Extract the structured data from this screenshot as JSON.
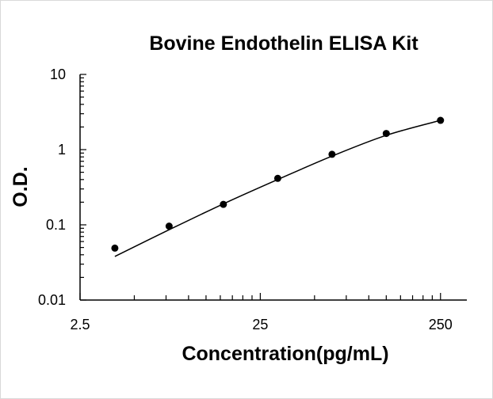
{
  "chart_data": {
    "type": "scatter",
    "title": "Bovine Endothelin  ELISA Kit",
    "xlabel": "Concentration(pg/mL)",
    "ylabel": "O.D.",
    "x_scale": "log",
    "y_scale": "log",
    "xlim": [
      2.5,
      350
    ],
    "ylim": [
      0.01,
      10
    ],
    "x_ticks": [
      "2.5",
      "25",
      "250"
    ],
    "y_ticks": [
      "10",
      "1",
      "0.1",
      "0.01"
    ],
    "grid": false,
    "legend": "none",
    "series": [
      {
        "x": [
          3.9,
          7.8,
          15.6,
          31.25,
          62.5,
          125,
          250
        ],
        "y": [
          0.049,
          0.096,
          0.187,
          0.415,
          0.866,
          1.64,
          2.45
        ]
      }
    ],
    "trendline": {
      "x": [
        3.9,
        7.8,
        15.6,
        31.25,
        62.5,
        125,
        250
      ],
      "y": [
        0.038,
        0.086,
        0.19,
        0.4,
        0.82,
        1.55,
        2.45
      ]
    },
    "colors": {
      "points": "#000000",
      "line": "#000000",
      "axis": "#000000"
    }
  }
}
